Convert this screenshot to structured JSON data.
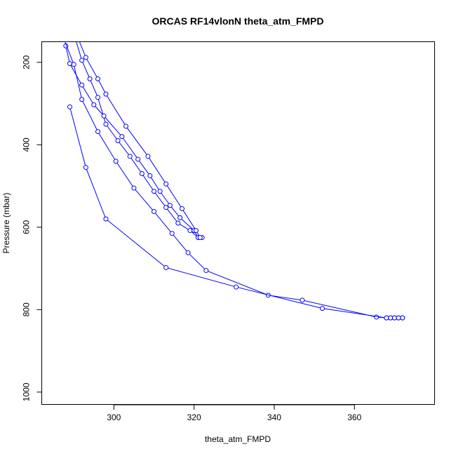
{
  "chart_data": {
    "type": "line",
    "title": "ORCAS RF14vlonN theta_atm_FMPD",
    "xlabel": "theta_atm_FMPD",
    "ylabel": "Pressure (mbar)",
    "xlim": [
      282,
      380
    ],
    "ylim": [
      1030,
      150
    ],
    "y_reversed": true,
    "grid": false,
    "legend": "none",
    "x_ticks": [
      300,
      320,
      340,
      360
    ],
    "y_ticks": [
      200,
      400,
      600,
      800,
      1000
    ],
    "series_color": "#0000ff",
    "marker": "open-circle",
    "series": [
      {
        "values": [
          [
            290,
            130
          ],
          [
            292,
            195
          ],
          [
            294,
            240
          ],
          [
            296,
            285
          ],
          [
            298,
            350
          ],
          [
            301,
            390
          ],
          [
            304,
            428
          ],
          [
            307,
            470
          ],
          [
            310,
            513
          ],
          [
            313,
            552
          ],
          [
            316,
            590
          ],
          [
            319,
            608
          ],
          [
            321,
            625
          ],
          [
            322,
            625
          ]
        ]
      },
      {
        "values": [
          [
            288,
            160
          ],
          [
            289,
            203
          ],
          [
            292,
            255
          ],
          [
            295,
            303
          ],
          [
            297.5,
            330
          ],
          [
            302,
            380
          ],
          [
            306,
            435
          ],
          [
            309,
            475
          ],
          [
            311.5,
            513
          ],
          [
            314,
            547
          ],
          [
            316.5,
            577
          ],
          [
            320,
            608
          ],
          [
            321,
            625
          ]
        ]
      },
      {
        "values": [
          [
            291,
            140
          ],
          [
            293,
            188
          ],
          [
            296,
            240
          ],
          [
            298,
            277
          ],
          [
            303,
            355
          ],
          [
            308.5,
            428
          ],
          [
            313,
            495
          ],
          [
            317,
            555
          ],
          [
            320.5,
            608
          ],
          [
            321.5,
            625
          ]
        ]
      },
      {
        "values": [
          [
            287,
            130
          ],
          [
            290,
            205
          ],
          [
            292,
            290
          ],
          [
            296,
            368
          ],
          [
            300.5,
            440
          ],
          [
            305,
            505
          ],
          [
            310,
            562
          ],
          [
            314.5,
            615
          ],
          [
            318.5,
            662
          ],
          [
            323,
            705
          ],
          [
            338.5,
            765
          ],
          [
            347,
            777
          ],
          [
            365.5,
            818
          ],
          [
            368,
            820
          ],
          [
            369,
            820
          ],
          [
            370,
            820
          ],
          [
            371,
            820
          ],
          [
            372,
            820
          ]
        ]
      },
      {
        "values": [
          [
            289,
            308
          ],
          [
            293,
            455
          ],
          [
            298,
            580
          ],
          [
            313,
            698
          ],
          [
            330.5,
            745
          ],
          [
            352,
            797
          ],
          [
            368,
            820
          ],
          [
            369,
            820
          ],
          [
            370,
            820
          ],
          [
            371,
            820
          ],
          [
            372,
            820
          ]
        ]
      }
    ]
  }
}
